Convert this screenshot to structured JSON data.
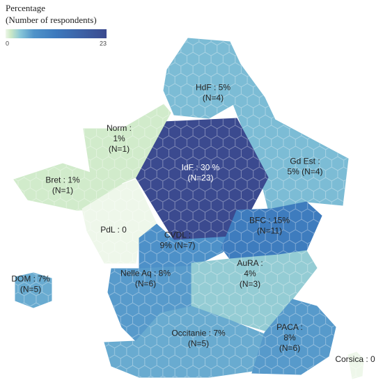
{
  "legend": {
    "title": [
      "Percentage",
      "(Number of respondents)"
    ],
    "min": 0,
    "max": 23
  },
  "regions": [
    {
      "label": [
        "HdF : 5%",
        "(N=4)"
      ],
      "n": 4
    },
    {
      "label": [
        "Gd Est :",
        "5% (N=4)"
      ],
      "n": 4
    },
    {
      "label": [
        "IdF : 30 %",
        "(N=23)"
      ],
      "n": 23
    },
    {
      "label": [
        "Norm :",
        "1%",
        "(N=1)"
      ],
      "n": 1
    },
    {
      "label": [
        "Bret : 1%",
        "(N=1)"
      ],
      "n": 1
    },
    {
      "label": [
        "PdL : 0"
      ],
      "n": 0
    },
    {
      "label": [
        "CVDL :",
        "9% (N=7)"
      ],
      "n": 7
    },
    {
      "label": [
        "BFC : 15%",
        "(N=11)"
      ],
      "n": 11
    },
    {
      "label": [
        "Nelle Aq : 8%",
        "(N=6)"
      ],
      "n": 6
    },
    {
      "label": [
        "AuRA :",
        "4%",
        "(N=3)"
      ],
      "n": 3
    },
    {
      "label": [
        "Occitanie : 7%",
        "(N=5)"
      ],
      "n": 5
    },
    {
      "label": [
        "PACA :",
        "8%",
        "(N=6)"
      ],
      "n": 6
    },
    {
      "label": [
        "Corsica : 0"
      ],
      "n": 0
    },
    {
      "label": [
        "DOM : 7%",
        "(N=5)"
      ],
      "n": 5
    }
  ]
}
